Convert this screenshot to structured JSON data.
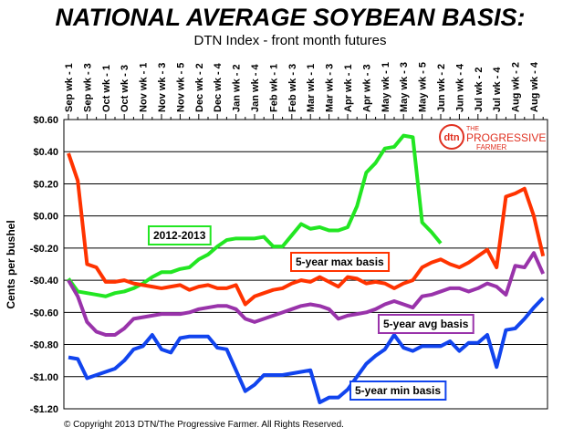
{
  "chart_data": {
    "type": "line",
    "title": "NATIONAL AVERAGE SOYBEAN BASIS:",
    "subtitle": "DTN Index - front month futures",
    "y_label": "Cents per bushel",
    "copyright": "© Copyright 2013 DTN/The Progressive Farmer. All Rights Reserved.",
    "logo": {
      "mark": "dtn",
      "line1": "THE",
      "line2": "PROGRESSIVE",
      "line3": "FARMER"
    },
    "categories": [
      "Sep wk - 1",
      null,
      "Sep wk - 3",
      null,
      "Oct wk - 1",
      null,
      "Oct wk - 3",
      null,
      "Nov wk - 1",
      null,
      "Nov wk - 3",
      null,
      "Nov wk - 5",
      null,
      "Dec wk - 2",
      null,
      "Dec wk - 4",
      null,
      "Jan wk - 2",
      null,
      "Jan wk - 4",
      null,
      "Feb wk - 1",
      null,
      "Feb wk - 3",
      null,
      "Mar wk - 1",
      null,
      "Mar wk - 3",
      null,
      "Apr wk - 1",
      null,
      "Apr wk - 3",
      null,
      "May wk - 1",
      null,
      "May wk - 3",
      null,
      "May wk - 5",
      null,
      "Jun wk - 2",
      null,
      "Jun wk - 4",
      null,
      "Jul wk - 2",
      null,
      "Jul wk - 4",
      null,
      "Aug wk - 2",
      null,
      "Aug wk - 4",
      null
    ],
    "series": [
      {
        "name": "2012-2013",
        "color": "#22e622",
        "values": [
          -0.39,
          -0.47,
          -0.48,
          -0.49,
          -0.5,
          -0.48,
          -0.47,
          -0.45,
          -0.42,
          -0.38,
          -0.35,
          -0.35,
          -0.33,
          -0.32,
          -0.27,
          -0.24,
          -0.19,
          -0.15,
          -0.14,
          -0.14,
          -0.14,
          -0.13,
          -0.19,
          -0.19,
          -0.12,
          -0.05,
          -0.08,
          -0.07,
          -0.09,
          -0.09,
          -0.07,
          0.06,
          0.27,
          0.33,
          0.42,
          0.43,
          0.5,
          0.49,
          -0.04,
          -0.1,
          -0.17,
          null,
          null,
          null,
          null,
          null,
          null,
          null,
          null,
          null,
          null,
          null
        ]
      },
      {
        "name": "5-year max basis",
        "color": "#ff3300",
        "values": [
          0.39,
          0.22,
          -0.3,
          -0.32,
          -0.41,
          -0.41,
          -0.4,
          -0.42,
          -0.43,
          -0.44,
          -0.45,
          -0.44,
          -0.43,
          -0.46,
          -0.44,
          -0.43,
          -0.45,
          -0.45,
          -0.43,
          -0.55,
          -0.5,
          -0.48,
          -0.46,
          -0.45,
          -0.42,
          -0.4,
          -0.41,
          -0.38,
          -0.41,
          -0.44,
          -0.38,
          -0.39,
          -0.42,
          -0.41,
          -0.42,
          -0.45,
          -0.42,
          -0.4,
          -0.32,
          -0.29,
          -0.27,
          -0.3,
          -0.32,
          -0.29,
          -0.25,
          -0.21,
          -0.32,
          0.12,
          0.14,
          0.17,
          0.0,
          -0.25
        ]
      },
      {
        "name": "5-year avg basis",
        "color": "#9933aa",
        "values": [
          -0.4,
          -0.5,
          -0.66,
          -0.72,
          -0.74,
          -0.74,
          -0.7,
          -0.64,
          -0.63,
          -0.62,
          -0.61,
          -0.61,
          -0.61,
          -0.6,
          -0.58,
          -0.57,
          -0.56,
          -0.56,
          -0.58,
          -0.64,
          -0.66,
          -0.64,
          -0.62,
          -0.6,
          -0.58,
          -0.56,
          -0.55,
          -0.56,
          -0.58,
          -0.64,
          -0.62,
          -0.61,
          -0.6,
          -0.58,
          -0.55,
          -0.53,
          -0.55,
          -0.57,
          -0.5,
          -0.49,
          -0.47,
          -0.45,
          -0.45,
          -0.47,
          -0.45,
          -0.42,
          -0.44,
          -0.49,
          -0.31,
          -0.32,
          -0.23,
          -0.36
        ]
      },
      {
        "name": "5-year min basis",
        "color": "#1144ee",
        "values": [
          -0.88,
          -0.89,
          -1.01,
          -0.99,
          -0.97,
          -0.95,
          -0.9,
          -0.83,
          -0.81,
          -0.74,
          -0.83,
          -0.85,
          -0.76,
          -0.75,
          -0.75,
          -0.75,
          -0.82,
          -0.83,
          -0.96,
          -1.09,
          -1.05,
          -0.99,
          -0.99,
          -0.99,
          -0.98,
          -0.97,
          -0.96,
          -1.16,
          -1.13,
          -1.13,
          -1.08,
          -1.0,
          -0.92,
          -0.87,
          -0.83,
          -0.74,
          -0.82,
          -0.84,
          -0.81,
          -0.81,
          -0.81,
          -0.78,
          -0.84,
          -0.79,
          -0.79,
          -0.74,
          -0.94,
          -0.71,
          -0.7,
          -0.64,
          -0.57,
          -0.51
        ]
      }
    ],
    "ylim": [
      -1.2,
      0.6
    ],
    "yticks": [
      {
        "value": 0.6,
        "label": "$0.60"
      },
      {
        "value": 0.4,
        "label": "$0.40"
      },
      {
        "value": 0.2,
        "label": "$0.20"
      },
      {
        "value": 0,
        "label": "$0.00"
      },
      {
        "value": -0.2,
        "label": "-$0.20"
      },
      {
        "value": -0.4,
        "label": "-$0.40"
      },
      {
        "value": -0.6,
        "label": "-$0.60"
      },
      {
        "value": -0.8,
        "label": "-$0.80"
      },
      {
        "value": -1,
        "label": "-$1.00"
      },
      {
        "value": -1.2,
        "label": "-$1.20"
      }
    ],
    "grid": true
  }
}
